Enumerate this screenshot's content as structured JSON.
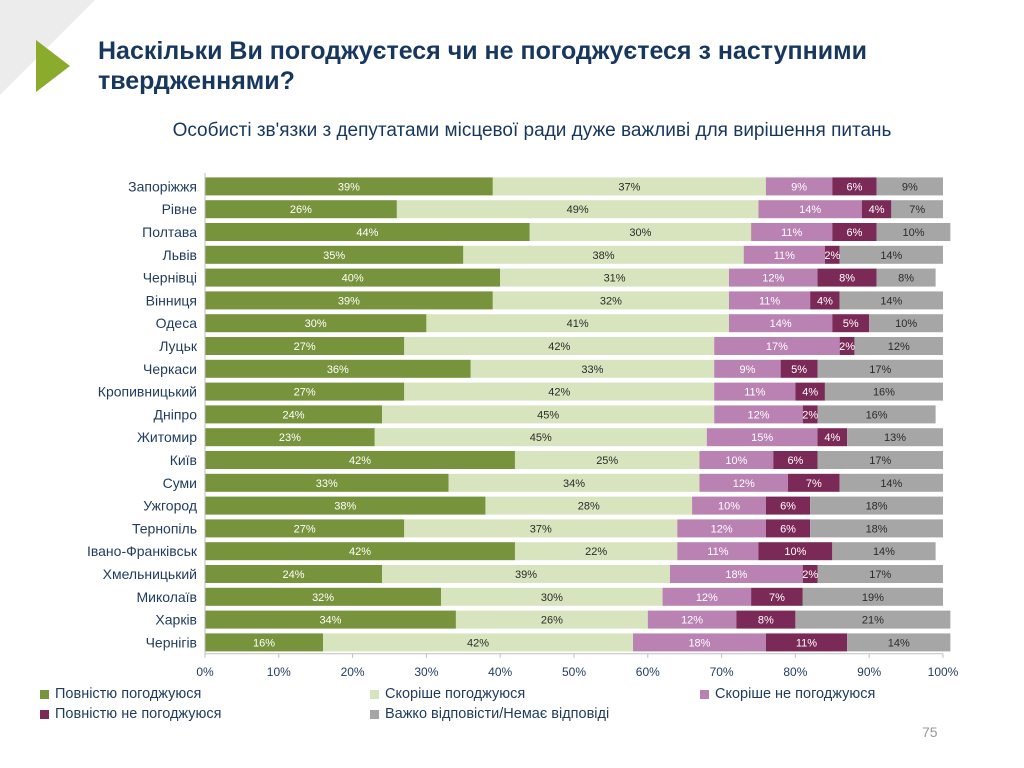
{
  "page": {
    "title": "Наскільки Ви погоджуєтеся чи не погоджуєтеся з наступними твердженнями?",
    "subtitle": "Особисті зв'язки з депутатами місцевої ради дуже важливі для вирішення питань",
    "page_number": "75"
  },
  "chart_data": {
    "type": "bar",
    "orientation": "horizontal",
    "stacked": "percent",
    "title": "Особисті зв'язки з депутатами місцевої ради дуже важливі для вирішення питань",
    "categories": [
      "Запоріжжя",
      "Рівне",
      "Полтава",
      "Львів",
      "Чернівці",
      "Вінниця",
      "Одеса",
      "Луцьк",
      "Черкаси",
      "Кропивницький",
      "Дніпро",
      "Житомир",
      "Київ",
      "Суми",
      "Ужгород",
      "Тернопіль",
      "Івано-Франківськ",
      "Хмельницький",
      "Миколаїв",
      "Харків",
      "Чернігів"
    ],
    "series": [
      {
        "name": "Повністю погоджуюся",
        "color": "#77933c",
        "label_color": "#ffffff",
        "values": [
          39,
          26,
          44,
          35,
          40,
          39,
          30,
          27,
          36,
          27,
          24,
          23,
          42,
          33,
          38,
          27,
          42,
          24,
          32,
          34,
          16
        ]
      },
      {
        "name": "Скоріше погоджуюся",
        "color": "#d7e4bd",
        "label_color": "#2b2b2b",
        "values": [
          37,
          49,
          30,
          38,
          31,
          32,
          41,
          42,
          33,
          42,
          45,
          45,
          25,
          34,
          28,
          37,
          22,
          39,
          30,
          26,
          42
        ]
      },
      {
        "name": "Скоріше не погоджуюся",
        "color": "#b982b2",
        "label_color": "#ffffff",
        "values": [
          9,
          14,
          11,
          11,
          12,
          11,
          14,
          17,
          9,
          11,
          12,
          15,
          10,
          12,
          10,
          12,
          11,
          18,
          12,
          12,
          18
        ]
      },
      {
        "name": "Повністю не погоджуюся",
        "color": "#7b2a58",
        "label_color": "#ffffff",
        "values": [
          6,
          4,
          6,
          2,
          8,
          4,
          5,
          2,
          5,
          4,
          2,
          4,
          6,
          7,
          6,
          6,
          10,
          2,
          7,
          8,
          11
        ]
      },
      {
        "name": "Важко відповісти/Немає відповіді",
        "color": "#a6a6a6",
        "label_color": "#2b2b2b",
        "values": [
          9,
          7,
          10,
          14,
          8,
          14,
          10,
          12,
          17,
          16,
          16,
          13,
          17,
          14,
          18,
          18,
          14,
          17,
          19,
          21,
          14
        ]
      }
    ],
    "x_ticks": [
      "0%",
      "10%",
      "20%",
      "30%",
      "40%",
      "50%",
      "60%",
      "70%",
      "80%",
      "90%",
      "100%"
    ],
    "xlim": [
      0,
      100
    ],
    "legend_position": "bottom"
  }
}
